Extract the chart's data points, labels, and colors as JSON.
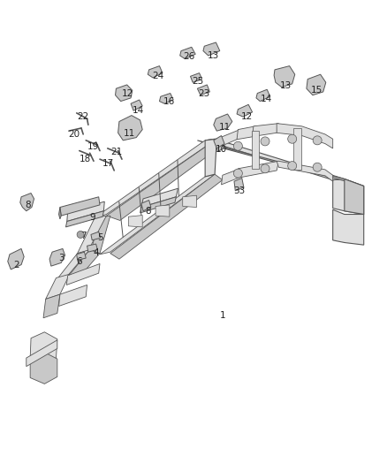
{
  "background_color": "#ffffff",
  "figsize": [
    4.38,
    5.33
  ],
  "dpi": 100,
  "line_color": "#555555",
  "fill_light": "#e0e0e0",
  "fill_mid": "#c8c8c8",
  "fill_dark": "#a8a8a8",
  "text_color": "#222222",
  "label_fontsize": 7.5,
  "labels": [
    {
      "num": "1",
      "ix": 0.575,
      "iy": 0.67
    },
    {
      "num": "2",
      "ix": 0.042,
      "iy": 0.562
    },
    {
      "num": "3",
      "ix": 0.158,
      "iy": 0.548
    },
    {
      "num": "4",
      "ix": 0.248,
      "iy": 0.536
    },
    {
      "num": "5",
      "ix": 0.26,
      "iy": 0.505
    },
    {
      "num": "6",
      "ix": 0.205,
      "iy": 0.555
    },
    {
      "num": "7",
      "ix": 0.215,
      "iy": 0.5
    },
    {
      "num": "8",
      "ix": 0.072,
      "iy": 0.435
    },
    {
      "num": "8",
      "ix": 0.382,
      "iy": 0.448
    },
    {
      "num": "9",
      "ix": 0.238,
      "iy": 0.462
    },
    {
      "num": "10",
      "ix": 0.572,
      "iy": 0.318
    },
    {
      "num": "11",
      "ix": 0.335,
      "iy": 0.283
    },
    {
      "num": "11",
      "ix": 0.582,
      "iy": 0.27
    },
    {
      "num": "12",
      "ix": 0.33,
      "iy": 0.198
    },
    {
      "num": "12",
      "ix": 0.638,
      "iy": 0.248
    },
    {
      "num": "13",
      "ix": 0.552,
      "iy": 0.118
    },
    {
      "num": "13",
      "ix": 0.738,
      "iy": 0.182
    },
    {
      "num": "14",
      "ix": 0.358,
      "iy": 0.235
    },
    {
      "num": "14",
      "ix": 0.688,
      "iy": 0.21
    },
    {
      "num": "15",
      "ix": 0.818,
      "iy": 0.192
    },
    {
      "num": "16",
      "ix": 0.438,
      "iy": 0.215
    },
    {
      "num": "17",
      "ix": 0.28,
      "iy": 0.348
    },
    {
      "num": "18",
      "ix": 0.22,
      "iy": 0.338
    },
    {
      "num": "19",
      "ix": 0.24,
      "iy": 0.312
    },
    {
      "num": "20",
      "ix": 0.192,
      "iy": 0.285
    },
    {
      "num": "21",
      "ix": 0.3,
      "iy": 0.322
    },
    {
      "num": "22",
      "ix": 0.215,
      "iy": 0.248
    },
    {
      "num": "23",
      "ix": 0.528,
      "iy": 0.198
    },
    {
      "num": "24",
      "ix": 0.408,
      "iy": 0.162
    },
    {
      "num": "25",
      "ix": 0.512,
      "iy": 0.172
    },
    {
      "num": "26",
      "ix": 0.488,
      "iy": 0.12
    },
    {
      "num": "33",
      "ix": 0.618,
      "iy": 0.405
    }
  ]
}
